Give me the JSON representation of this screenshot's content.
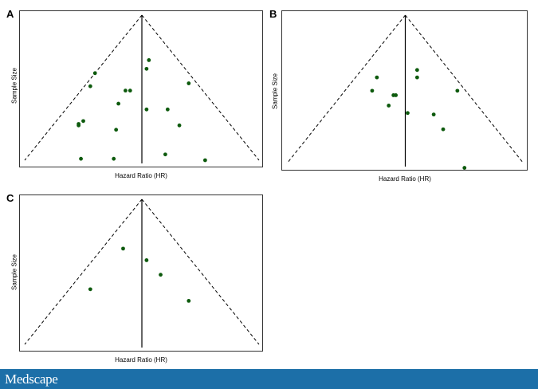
{
  "brand": "Medscape",
  "colors": {
    "point": "#0d5a0d",
    "line": "#000000",
    "footer": "#1c6fa8"
  },
  "chart_data": [
    {
      "panel": "A",
      "type": "scatter",
      "xlabel": "Hazard Ratio (HR)",
      "ylabel": "Sample Size",
      "xlim": [
        0,
        100
      ],
      "ylim": [
        0,
        100
      ],
      "grid": false,
      "points": [
        {
          "x": 53,
          "y": 69
        },
        {
          "x": 52,
          "y": 63
        },
        {
          "x": 30,
          "y": 60
        },
        {
          "x": 70,
          "y": 53
        },
        {
          "x": 28,
          "y": 51
        },
        {
          "x": 43,
          "y": 48
        },
        {
          "x": 45,
          "y": 48
        },
        {
          "x": 40,
          "y": 39
        },
        {
          "x": 52,
          "y": 35
        },
        {
          "x": 61,
          "y": 35
        },
        {
          "x": 25,
          "y": 27
        },
        {
          "x": 23,
          "y": 25
        },
        {
          "x": 23,
          "y": 24
        },
        {
          "x": 66,
          "y": 24
        },
        {
          "x": 39,
          "y": 21
        },
        {
          "x": 60,
          "y": 4
        },
        {
          "x": 24,
          "y": 1
        },
        {
          "x": 38,
          "y": 1
        },
        {
          "x": 77,
          "y": 0
        }
      ]
    },
    {
      "panel": "B",
      "type": "scatter",
      "xlabel": "Hazard Ratio (HR)",
      "ylabel": "Sample Size",
      "xlim": [
        0,
        100
      ],
      "ylim": [
        0,
        100
      ],
      "grid": false,
      "points": [
        {
          "x": 55,
          "y": 63
        },
        {
          "x": 38,
          "y": 58
        },
        {
          "x": 55,
          "y": 58
        },
        {
          "x": 36,
          "y": 49
        },
        {
          "x": 72,
          "y": 49
        },
        {
          "x": 45,
          "y": 46
        },
        {
          "x": 46,
          "y": 46
        },
        {
          "x": 43,
          "y": 39
        },
        {
          "x": 51,
          "y": 34
        },
        {
          "x": 62,
          "y": 33
        },
        {
          "x": 66,
          "y": 23
        },
        {
          "x": 75,
          "y": -3
        }
      ]
    },
    {
      "panel": "C",
      "type": "scatter",
      "xlabel": "Hazard Ratio (HR)",
      "ylabel": "Sample Size",
      "xlim": [
        0,
        100
      ],
      "ylim": [
        0,
        100
      ],
      "grid": false,
      "points": [
        {
          "x": 42,
          "y": 66
        },
        {
          "x": 52,
          "y": 58
        },
        {
          "x": 58,
          "y": 48
        },
        {
          "x": 28,
          "y": 38
        },
        {
          "x": 70,
          "y": 30
        }
      ]
    }
  ]
}
